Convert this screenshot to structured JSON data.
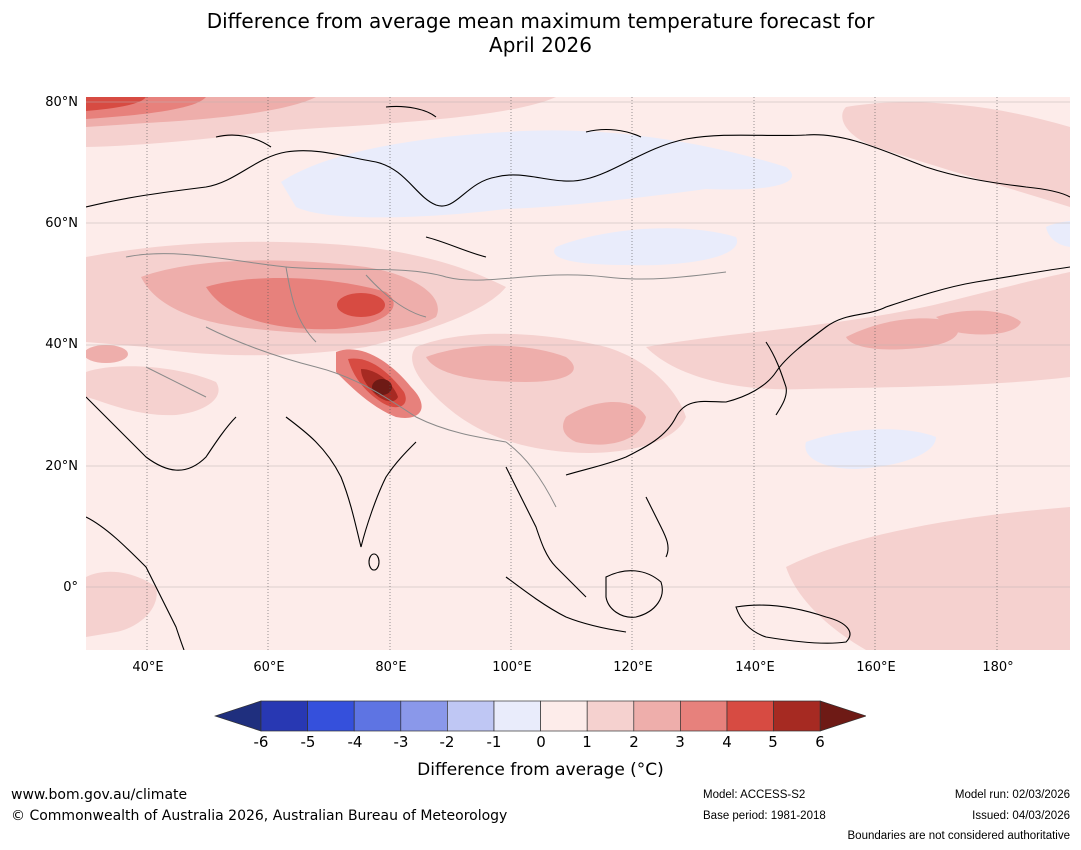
{
  "title": {
    "line1": "Difference from average mean maximum temperature forecast for",
    "line2": "April 2026"
  },
  "axes": {
    "lat_labels": [
      "80°N",
      "60°N",
      "40°N",
      "20°N",
      "0°"
    ],
    "lon_labels": [
      "40°E",
      "60°E",
      "80°E",
      "100°E",
      "120°E",
      "140°E",
      "160°E",
      "180°"
    ]
  },
  "legend": {
    "label": "Difference from average (°C)",
    "ticks": [
      "-6",
      "-5",
      "-4",
      "-3",
      "-2",
      "-1",
      "0",
      "1",
      "2",
      "3",
      "4",
      "5",
      "6"
    ],
    "colors": [
      "#1f2f7e",
      "#2838b3",
      "#3550dc",
      "#5e74e3",
      "#8a98ea",
      "#bfc7f4",
      "#e9ecfb",
      "#fdecea",
      "#f5d1cf",
      "#eeaeab",
      "#e7817c",
      "#d74b42",
      "#a62a22",
      "#6e1a15"
    ]
  },
  "map": {
    "region": "Asia and western Pacific",
    "features": [
      "coastline",
      "country-borders",
      "graticule"
    ]
  },
  "footer": {
    "website": "www.bom.gov.au/climate",
    "copyright": "© Commonwealth of Australia 2026, Australian Bureau of Meteorology",
    "model": "Model: ACCESS-S2",
    "base_period": "Base period: 1981-2018",
    "model_run": "Model run: 02/03/2026",
    "issued": "Issued: 04/03/2026",
    "boundaries_note": "Boundaries are not considered authoritative"
  }
}
